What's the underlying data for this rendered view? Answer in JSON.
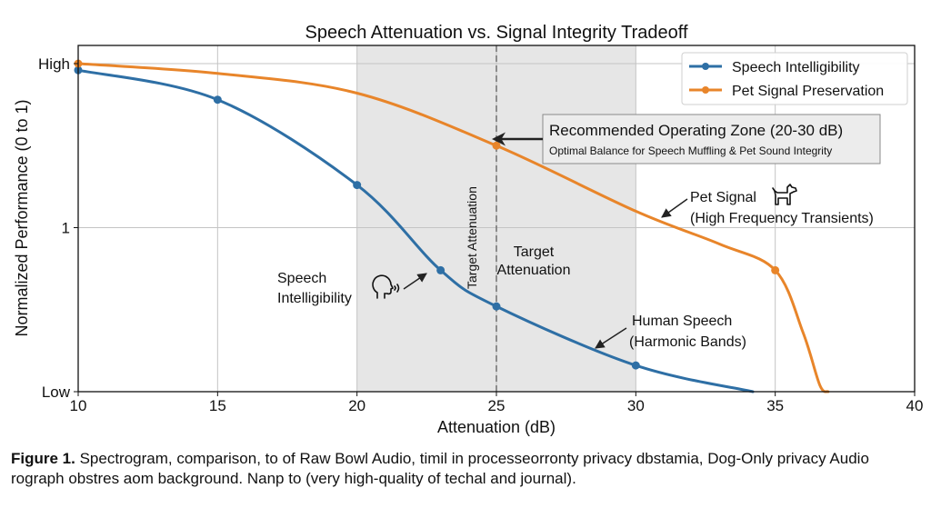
{
  "chart_data": {
    "type": "line",
    "title": "Speech Attenuation vs. Signal Integrity Tradeoff",
    "xlabel": "Attenuation (dB)",
    "ylabel": "Normalized Performance (0 to 1)",
    "xlim": [
      10,
      40
    ],
    "ylim": [
      0,
      1
    ],
    "xticks": [
      10,
      15,
      20,
      25,
      30,
      35,
      40
    ],
    "yticks": [
      {
        "value": 1.0,
        "label": "High"
      },
      {
        "value": 0.5,
        "label": "1"
      },
      {
        "value": 0.0,
        "label": "Low"
      }
    ],
    "grid": true,
    "legend_position": "top-right",
    "series": [
      {
        "name": "Speech Intelligibility",
        "color": "#2e6fa5",
        "points": [
          [
            10,
            0.98
          ],
          [
            15,
            0.89
          ],
          [
            20,
            0.63
          ],
          [
            23,
            0.37
          ],
          [
            25,
            0.26
          ],
          [
            30,
            0.08
          ],
          [
            34.2,
            0.0
          ]
        ],
        "markers": [
          [
            10,
            0.98
          ],
          [
            15,
            0.89
          ],
          [
            20,
            0.63
          ],
          [
            23,
            0.37
          ],
          [
            25,
            0.26
          ],
          [
            30,
            0.08
          ]
        ]
      },
      {
        "name": "Pet Signal Preservation",
        "color": "#e8852a",
        "points": [
          [
            10,
            1.0
          ],
          [
            15,
            0.97
          ],
          [
            20,
            0.91
          ],
          [
            25,
            0.75
          ],
          [
            30,
            0.55
          ],
          [
            33,
            0.45
          ],
          [
            35,
            0.37
          ],
          [
            36,
            0.18
          ],
          [
            36.6,
            0.02
          ],
          [
            36.9,
            0.0
          ]
        ],
        "markers": [
          [
            10,
            1.0
          ],
          [
            25,
            0.75
          ],
          [
            35,
            0.37
          ]
        ]
      }
    ],
    "shaded_region": {
      "x_from": 20,
      "x_to": 30,
      "color": "#e6e6e6"
    },
    "reference_line": {
      "x": 25,
      "label": "Target Attenuation",
      "style": "dashed"
    },
    "annotations": [
      {
        "id": "zone-box",
        "title": "Recommended Operating Zone (20-30 dB)",
        "subtitle": "Optimal Balance for Speech Muffling & Pet Sound Integrity",
        "arrow_to": [
          25,
          0.75
        ]
      },
      {
        "id": "target-label",
        "lines": [
          "Target",
          "Attenuation"
        ]
      },
      {
        "id": "speech-label",
        "lines": [
          "Speech",
          "Intelligibility"
        ],
        "icon": "speaking-head-icon",
        "arrow_to": [
          23,
          0.37
        ]
      },
      {
        "id": "pet-label",
        "lines": [
          "Pet Signal",
          "(High Frequency Transients)"
        ],
        "icon": "dog-icon",
        "arrow_to": [
          29.3,
          0.53
        ]
      },
      {
        "id": "human-label",
        "lines": [
          "Human Speech",
          "(Harmonic Bands)"
        ],
        "arrow_to": [
          28.3,
          0.13
        ]
      }
    ]
  },
  "caption": {
    "label": "Figure 1.",
    "text": " Spectrogram, comparison, to of Raw Bowl Audio, timil in processeorronty privacy dbstamia, Dog-Only privacy Audio rograph obstres aom background. Nanp to (very high-quality of techal and journal)."
  }
}
